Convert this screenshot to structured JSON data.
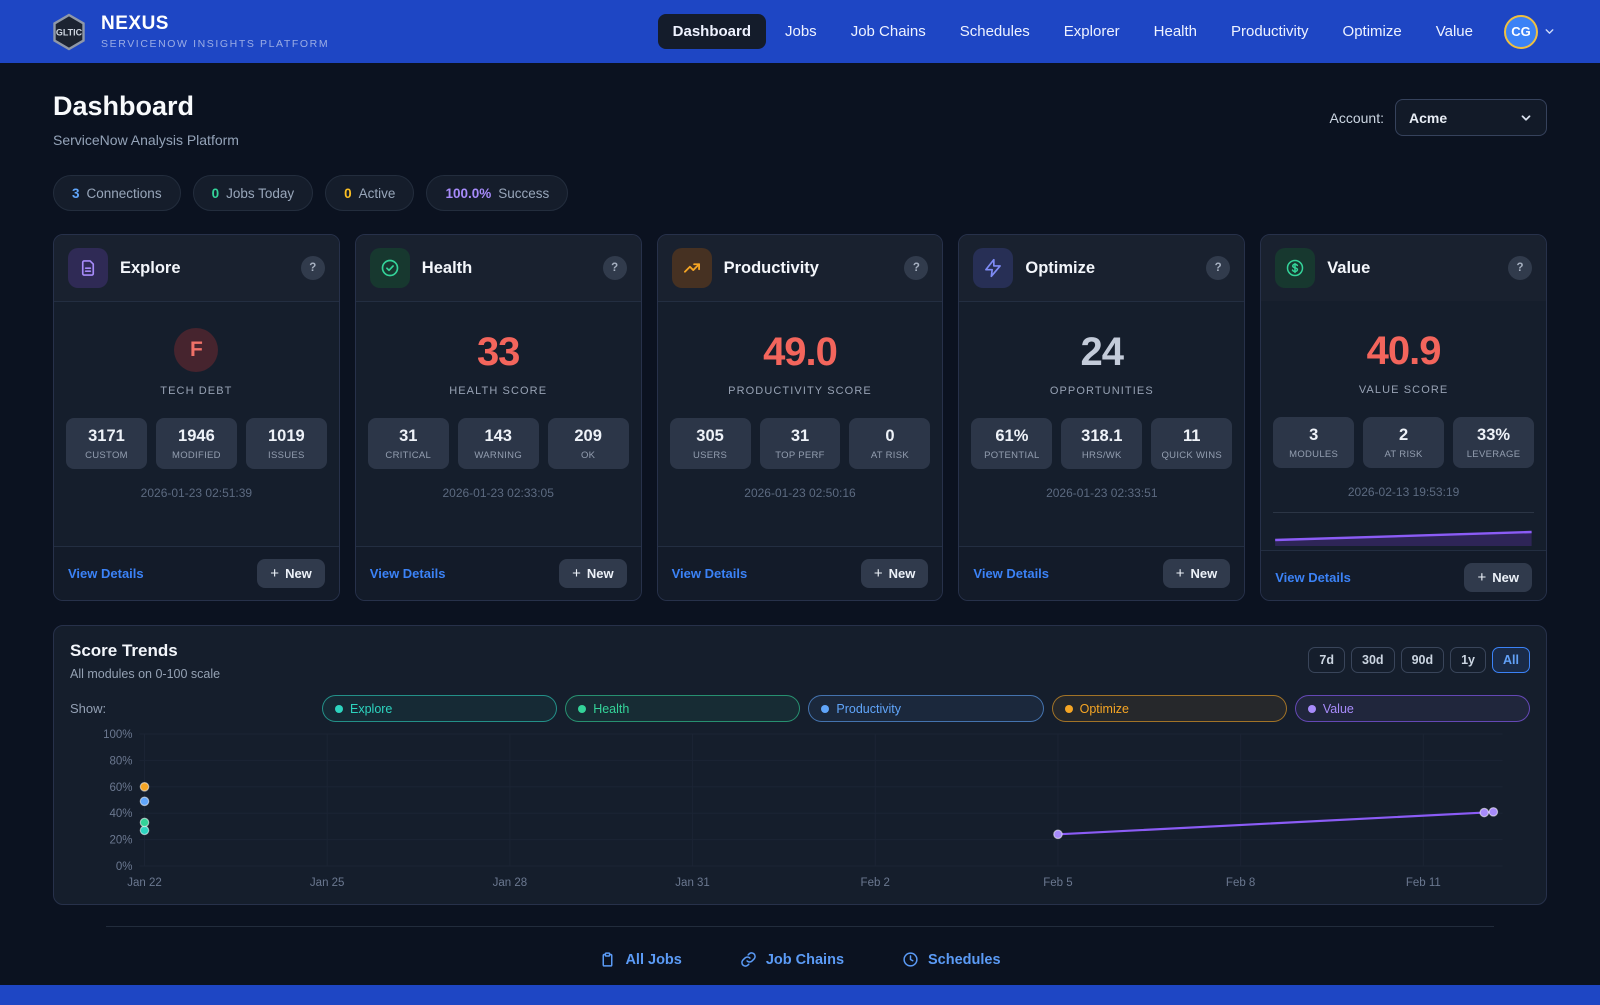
{
  "header": {
    "logo_text": "GLTIC",
    "brand": "NEXUS",
    "brand_subtitle": "SERVICENOW INSIGHTS PLATFORM",
    "nav": [
      {
        "label": "Dashboard",
        "active": true
      },
      {
        "label": "Jobs",
        "active": false
      },
      {
        "label": "Job Chains",
        "active": false
      },
      {
        "label": "Schedules",
        "active": false
      },
      {
        "label": "Explorer",
        "active": false
      },
      {
        "label": "Health",
        "active": false
      },
      {
        "label": "Productivity",
        "active": false
      },
      {
        "label": "Optimize",
        "active": false
      },
      {
        "label": "Value",
        "active": false
      }
    ],
    "avatar_initials": "CG"
  },
  "page": {
    "title": "Dashboard",
    "subtitle": "ServiceNow Analysis Platform",
    "account_label": "Account:",
    "account_value": "Acme"
  },
  "summary_pills": [
    {
      "value": "3",
      "label": "Connections",
      "value_color": "#60a5fa"
    },
    {
      "value": "0",
      "label": "Jobs Today",
      "value_color": "#34d399"
    },
    {
      "value": "0",
      "label": "Active",
      "value_color": "#fbbf24"
    },
    {
      "value": "100.0%",
      "label": "Success",
      "value_color": "#a78bfa"
    }
  ],
  "cards_common": {
    "view_details_label": "View Details",
    "new_label": "New",
    "help_label": "?"
  },
  "cards": [
    {
      "title": "Explore",
      "icon": "document-icon",
      "icon_color": "#a78bfa",
      "icon_bg": "#2f2a55",
      "score_type": "grade",
      "score": "F",
      "score_color": "#f07168",
      "score_bg": "#46242e",
      "metric_label": "TECH DEBT",
      "stats": [
        {
          "value": "3171",
          "label": "CUSTOM"
        },
        {
          "value": "1946",
          "label": "MODIFIED"
        },
        {
          "value": "1019",
          "label": "ISSUES"
        }
      ],
      "timestamp": "2026-01-23 02:51:39",
      "sparkline": false
    },
    {
      "title": "Health",
      "icon": "check-circle-icon",
      "icon_color": "#34d399",
      "icon_bg": "#17382f",
      "score_type": "number",
      "score": "33",
      "score_color": "#f3655c",
      "metric_label": "HEALTH SCORE",
      "stats": [
        {
          "value": "31",
          "label": "CRITICAL"
        },
        {
          "value": "143",
          "label": "WARNING"
        },
        {
          "value": "209",
          "label": "OK"
        }
      ],
      "timestamp": "2026-01-23 02:33:05",
      "sparkline": false
    },
    {
      "title": "Productivity",
      "icon": "trending-up-icon",
      "icon_color": "#f5a524",
      "icon_bg": "#463122",
      "score_type": "number",
      "score": "49.0",
      "score_color": "#f3655c",
      "metric_label": "PRODUCTIVITY SCORE",
      "stats": [
        {
          "value": "305",
          "label": "USERS"
        },
        {
          "value": "31",
          "label": "TOP PERF"
        },
        {
          "value": "0",
          "label": "AT RISK"
        }
      ],
      "timestamp": "2026-01-23 02:50:16",
      "sparkline": false
    },
    {
      "title": "Optimize",
      "icon": "zap-icon",
      "icon_color": "#7e8bf5",
      "icon_bg": "#272f55",
      "score_type": "number",
      "score": "24",
      "score_color": "#c3cbd9",
      "metric_label": "OPPORTUNITIES",
      "stats": [
        {
          "value": "61%",
          "label": "POTENTIAL"
        },
        {
          "value": "318.1",
          "label": "HRS/WK"
        },
        {
          "value": "11",
          "label": "QUICK WINS"
        }
      ],
      "timestamp": "2026-01-23 02:33:51",
      "sparkline": false
    },
    {
      "title": "Value",
      "icon": "dollar-circle-icon",
      "icon_color": "#34d399",
      "icon_bg": "#17382f",
      "score_type": "number",
      "score": "40.9",
      "score_color": "#f3655c",
      "metric_label": "VALUE SCORE",
      "stats": [
        {
          "value": "3",
          "label": "MODULES"
        },
        {
          "value": "2",
          "label": "AT RISK"
        },
        {
          "value": "33%",
          "label": "LEVERAGE"
        }
      ],
      "timestamp": "2026-02-13 19:53:19",
      "sparkline": true
    }
  ],
  "trends": {
    "title": "Score Trends",
    "subtitle": "All modules on 0-100 scale",
    "ranges": [
      "7d",
      "30d",
      "90d",
      "1y",
      "All"
    ],
    "active_range": "All",
    "show_label": "Show:",
    "legend": [
      {
        "label": "Explore",
        "color": "#2dd4bf",
        "border": "rgba(45,212,191,0.6)",
        "bg": "rgba(45,212,191,0.07)"
      },
      {
        "label": "Health",
        "color": "#34d399",
        "border": "rgba(52,211,153,0.6)",
        "bg": "rgba(52,211,153,0.08)"
      },
      {
        "label": "Productivity",
        "color": "#60a5fa",
        "border": "rgba(96,165,250,0.6)",
        "bg": "rgba(96,165,250,0.08)"
      },
      {
        "label": "Optimize",
        "color": "#f5a524",
        "border": "rgba(245,165,36,0.6)",
        "bg": "rgba(245,165,36,0.08)"
      },
      {
        "label": "Value",
        "color": "#a78bfa",
        "border": "rgba(139,92,246,0.65)",
        "bg": "rgba(167,139,250,0.08)"
      }
    ]
  },
  "chart_data": {
    "type": "scatter+line",
    "title": "Score Trends",
    "subtitle": "All modules on 0-100 scale",
    "ylim": [
      0,
      100
    ],
    "y_ticks": [
      "0%",
      "20%",
      "40%",
      "60%",
      "80%",
      "100%"
    ],
    "x_ticks": [
      "Jan 22",
      "Jan 25",
      "Jan 28",
      "Jan 31",
      "Feb 2",
      "Feb 5",
      "Feb 8",
      "Feb 11"
    ],
    "x_tick_days": [
      0,
      3,
      6,
      9,
      12,
      15,
      18,
      21
    ],
    "x_unit": "days since Jan 22",
    "x_domain_days": [
      0,
      22.3
    ],
    "grid": true,
    "legend_position": "top",
    "series": [
      {
        "name": "Explore",
        "color": "#2dd4bf",
        "points": [
          {
            "day": 0,
            "value": 27
          }
        ]
      },
      {
        "name": "Health",
        "color": "#34d399",
        "points": [
          {
            "day": 0,
            "value": 33
          }
        ]
      },
      {
        "name": "Productivity",
        "color": "#60a5fa",
        "points": [
          {
            "day": 0,
            "value": 49
          }
        ]
      },
      {
        "name": "Optimize",
        "color": "#f5a524",
        "points": [
          {
            "day": 0,
            "value": 60
          }
        ]
      },
      {
        "name": "Value",
        "color": "#a78bfa",
        "line_color": "#8b5cf6",
        "points": [
          {
            "day": 15,
            "value": 24
          },
          {
            "day": 22,
            "value": 40.5
          },
          {
            "day": 22.15,
            "value": 41
          }
        ]
      }
    ]
  },
  "footer": {
    "links": [
      {
        "label": "All Jobs",
        "icon": "clipboard-icon"
      },
      {
        "label": "Job Chains",
        "icon": "link-icon"
      },
      {
        "label": "Schedules",
        "icon": "clock-icon"
      }
    ]
  }
}
